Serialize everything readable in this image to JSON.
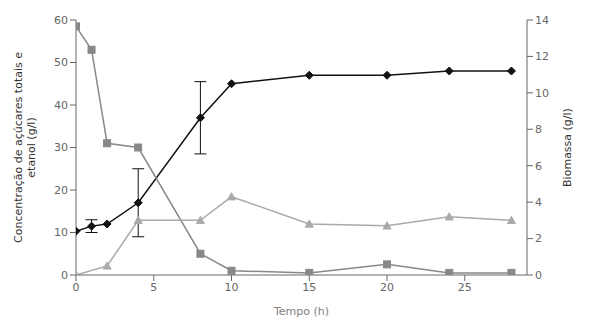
{
  "chart_data": {
    "type": "line",
    "xlabel": "Tempo (h)",
    "ylabel": "Concentração de açúcares totais e\netanol (g/l)",
    "y2label": "Biomassa (g/l)",
    "xlim": [
      0,
      29
    ],
    "xticks": [
      0,
      5,
      10,
      15,
      20,
      25
    ],
    "ylim": [
      0,
      60
    ],
    "yticks": [
      0,
      10,
      20,
      30,
      40,
      50,
      60
    ],
    "y2lim": [
      0,
      14
    ],
    "y2ticks": [
      0,
      2,
      4,
      6,
      8,
      10,
      12,
      14
    ],
    "grid": false,
    "series": [
      {
        "x": [
          0,
          1,
          2,
          4,
          8,
          10,
          15,
          20,
          24,
          28
        ],
        "values": [
          10.3,
          11.5,
          12.0,
          17.0,
          37.0,
          45.0,
          47.0,
          47.0,
          48.0,
          48.0
        ],
        "errors": [
          0.0,
          1.5,
          0.0,
          8.0,
          8.5,
          0.0,
          0.0,
          0.0,
          0.0,
          0.0
        ],
        "color": "#111111",
        "marker": "diamond",
        "line_style": "solid"
      },
      {
        "x": [
          0,
          1,
          2,
          4,
          8,
          10,
          15,
          20,
          24,
          28
        ],
        "values": [
          58.5,
          53.0,
          31.0,
          30.0,
          5.0,
          1.0,
          0.5,
          2.5,
          0.5,
          0.5
        ],
        "color": "#888888",
        "marker": "square",
        "line_style": "solid"
      },
      {
        "x": [
          0,
          2,
          4,
          8,
          10,
          15,
          20,
          24,
          28
        ],
        "values": [
          0.0,
          0.5,
          3.0,
          3.0,
          4.3,
          2.8,
          2.7,
          3.2,
          3.0
        ],
        "color": "#aaaaaa",
        "marker": "triangle",
        "line_style": "solid",
        "axis": "y2"
      }
    ]
  }
}
